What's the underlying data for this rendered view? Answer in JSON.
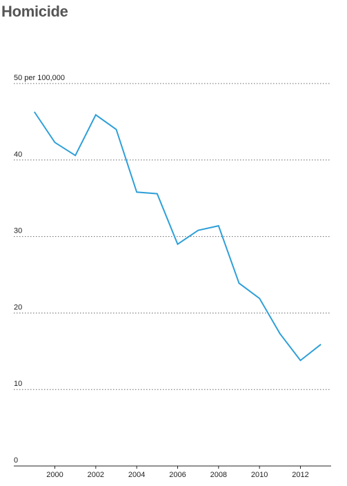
{
  "chart_data": {
    "type": "line",
    "title": "Homicide",
    "xlabel": "",
    "ylabel": "",
    "y_unit_label": "per 100,000",
    "x": [
      1999,
      2000,
      2001,
      2002,
      2003,
      2004,
      2005,
      2006,
      2007,
      2008,
      2009,
      2010,
      2011,
      2012,
      2013
    ],
    "series": [
      {
        "values": [
          46.3,
          42.3,
          40.6,
          45.9,
          44.0,
          35.8,
          35.6,
          29.0,
          30.8,
          31.4,
          23.9,
          21.9,
          17.3,
          13.8,
          15.9
        ],
        "color": "#2e9fd8"
      }
    ],
    "ylim": [
      0,
      50
    ],
    "yticks": [
      0,
      10,
      20,
      30,
      40,
      50
    ],
    "xlim": [
      1998.5,
      2013.5
    ],
    "xticks": [
      2000,
      2002,
      2004,
      2006,
      2008,
      2010,
      2012
    ],
    "grid": "horizontal-dotted",
    "legend": "none"
  }
}
